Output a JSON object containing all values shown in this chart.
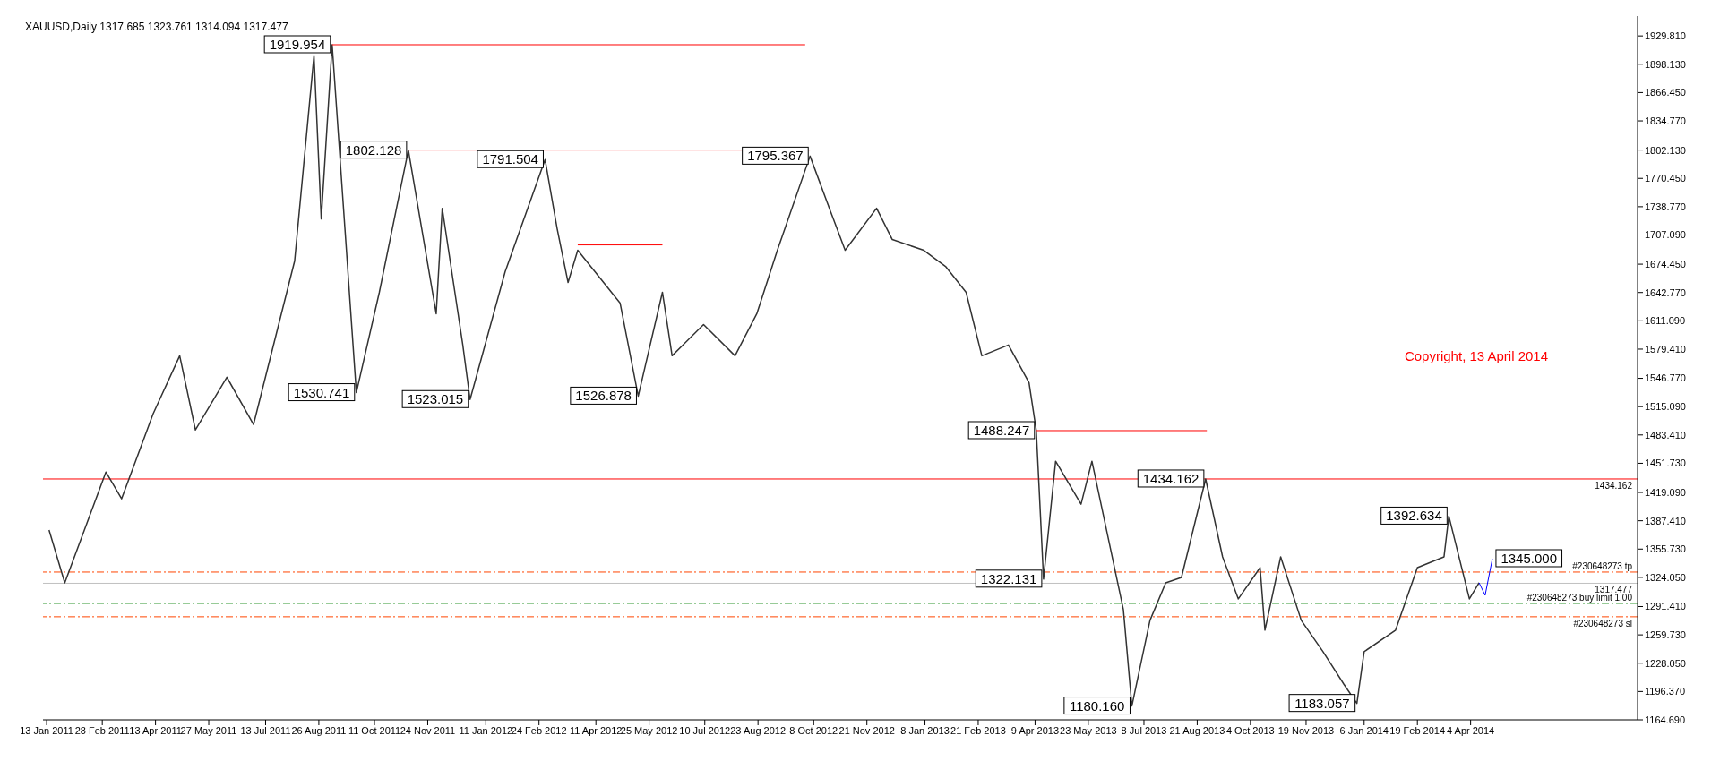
{
  "chart_data": {
    "type": "line",
    "title": "XAUUSD,Daily  1317.685 1323.761 1314.094 1317.477",
    "x": [
      "2011-01-15",
      "2011-01-28",
      "2011-03-03",
      "2011-03-16",
      "2011-04-11",
      "2011-05-03",
      "2011-05-16",
      "2011-06-11",
      "2011-07-03",
      "2011-08-06",
      "2011-08-22",
      "2011-08-28",
      "2011-09-06",
      "2011-09-26",
      "2011-10-15",
      "2011-11-08",
      "2011-12-01",
      "2011-12-06",
      "2011-12-23",
      "2011-12-29",
      "2012-01-27",
      "2012-02-29",
      "2012-03-10",
      "2012-03-19",
      "2012-03-27",
      "2012-05-01",
      "2012-05-16",
      "2012-06-05",
      "2012-06-13",
      "2012-07-09",
      "2012-08-04",
      "2012-08-22",
      "2012-09-08",
      "2012-10-05",
      "2012-10-21",
      "2012-11-03",
      "2012-11-29",
      "2012-12-12",
      "2013-01-07",
      "2013-01-25",
      "2013-02-11",
      "2013-02-24",
      "2013-03-18",
      "2013-04-04",
      "2013-04-10",
      "2013-04-13",
      "2013-04-16",
      "2013-04-26",
      "2013-05-17",
      "2013-05-26",
      "2013-06-21",
      "2013-06-28",
      "2013-07-13",
      "2013-07-26",
      "2013-08-08",
      "2013-08-28",
      "2013-09-11",
      "2013-09-24",
      "2013-10-12",
      "2013-10-16",
      "2013-10-29",
      "2013-11-15",
      "2013-12-03",
      "2013-12-20",
      "2013-12-31",
      "2014-01-06",
      "2014-02-01",
      "2014-02-19",
      "2014-03-13",
      "2014-03-17",
      "2014-04-03",
      "2014-04-11"
    ],
    "series": [
      {
        "color": "#333333",
        "values": [
          1377,
          1318,
          1442,
          1412,
          1507,
          1572,
          1489,
          1548,
          1495,
          1678,
          1908,
          1725,
          1919.954,
          1530.741,
          1643,
          1802.128,
          1619,
          1737,
          1584,
          1523.015,
          1666,
          1791.504,
          1714,
          1654,
          1690,
          1631,
          1526.878,
          1643,
          1572,
          1607,
          1572,
          1619,
          1690,
          1795.367,
          1737,
          1690,
          1737,
          1702,
          1690,
          1672,
          1643,
          1572,
          1584,
          1542,
          1488.247,
          1406,
          1322.131,
          1454,
          1406,
          1454,
          1288,
          1180.16,
          1276,
          1318,
          1324,
          1434.162,
          1347,
          1300,
          1335,
          1265,
          1347,
          1276,
          1241,
          1205,
          1183.057,
          1241,
          1265,
          1335,
          1347,
          1392.634,
          1300,
          1318
        ]
      },
      {
        "type": "line",
        "color": "#ff0000",
        "x": [
          "2011-09-06",
          "2012-10-01"
        ],
        "values": [
          1919.954,
          1919.954
        ]
      },
      {
        "type": "line",
        "color": "#ff0000",
        "x": [
          "2011-11-08",
          "2012-10-05"
        ],
        "values": [
          1802.128,
          1802.128
        ]
      },
      {
        "type": "line",
        "color": "#ff0000",
        "x": [
          "2012-03-27",
          "2012-06-05"
        ],
        "values": [
          1696,
          1696
        ]
      },
      {
        "type": "line",
        "color": "#ff0000",
        "x": [
          "2013-04-10",
          "2013-08-29"
        ],
        "values": [
          1488.247,
          1488.247
        ]
      },
      {
        "type": "line",
        "color": "#0000ff",
        "x": [
          "2014-04-11",
          "2014-04-16",
          "2014-04-22"
        ],
        "values": [
          1318,
          1304,
          1345
        ]
      }
    ],
    "xlim": [
      "2011-01-10",
      "2014-08-20"
    ],
    "xticks": [
      {
        "value": "2011-01-13",
        "label": "13 Jan 2011"
      },
      {
        "value": "2011-02-28",
        "label": "28 Feb 2011"
      },
      {
        "value": "2011-04-13",
        "label": "13 Apr 2011"
      },
      {
        "value": "2011-05-27",
        "label": "27 May 2011"
      },
      {
        "value": "2011-07-13",
        "label": "13 Jul 2011"
      },
      {
        "value": "2011-08-26",
        "label": "26 Aug 2011"
      },
      {
        "value": "2011-10-11",
        "label": "11 Oct 2011"
      },
      {
        "value": "2011-11-24",
        "label": "24 Nov 2011"
      },
      {
        "value": "2012-01-11",
        "label": "11 Jan 2012"
      },
      {
        "value": "2012-02-24",
        "label": "24 Feb 2012"
      },
      {
        "value": "2012-04-11",
        "label": "11 Apr 2012"
      },
      {
        "value": "2012-05-25",
        "label": "25 May 2012"
      },
      {
        "value": "2012-07-10",
        "label": "10 Jul 2012"
      },
      {
        "value": "2012-08-23",
        "label": "23 Aug 2012"
      },
      {
        "value": "2012-10-08",
        "label": "8 Oct 2012"
      },
      {
        "value": "2012-11-21",
        "label": "21 Nov 2012"
      },
      {
        "value": "2013-01-08",
        "label": "8 Jan 2013"
      },
      {
        "value": "2013-02-21",
        "label": "21 Feb 2013"
      },
      {
        "value": "2013-04-09",
        "label": "9 Apr 2013"
      },
      {
        "value": "2013-05-23",
        "label": "23 May 2013"
      },
      {
        "value": "2013-07-08",
        "label": "8 Jul 2013"
      },
      {
        "value": "2013-08-21",
        "label": "21 Aug 2013"
      },
      {
        "value": "2013-10-04",
        "label": "4 Oct 2013"
      },
      {
        "value": "2013-11-19",
        "label": "19 Nov 2013"
      },
      {
        "value": "2014-01-06",
        "label": "6 Jan 2014"
      },
      {
        "value": "2014-02-19",
        "label": "19 Feb 2014"
      },
      {
        "value": "2014-04-04",
        "label": "4 Apr 2014"
      }
    ],
    "ylim": [
      1164.69,
      1952
    ],
    "yticks": [
      {
        "value": 1929.81,
        "label": "1929.810"
      },
      {
        "value": 1898.13,
        "label": "1898.130"
      },
      {
        "value": 1866.45,
        "label": "1866.450"
      },
      {
        "value": 1834.77,
        "label": "1834.770"
      },
      {
        "value": 1802.13,
        "label": "1802.130"
      },
      {
        "value": 1770.45,
        "label": "1770.450"
      },
      {
        "value": 1738.77,
        "label": "1738.770"
      },
      {
        "value": 1707.09,
        "label": "1707.090"
      },
      {
        "value": 1674.45,
        "label": "1674.450"
      },
      {
        "value": 1642.77,
        "label": "1642.770"
      },
      {
        "value": 1611.09,
        "label": "1611.090"
      },
      {
        "value": 1579.41,
        "label": "1579.410"
      },
      {
        "value": 1546.77,
        "label": "1546.770"
      },
      {
        "value": 1515.09,
        "label": "1515.090"
      },
      {
        "value": 1483.41,
        "label": "1483.410"
      },
      {
        "value": 1451.73,
        "label": "1451.730"
      },
      {
        "value": 1419.09,
        "label": "1419.090"
      },
      {
        "value": 1387.41,
        "label": "1387.410"
      },
      {
        "value": 1355.73,
        "label": "1355.730"
      },
      {
        "value": 1324.05,
        "label": "1324.050"
      },
      {
        "value": 1291.41,
        "label": "1291.410"
      },
      {
        "value": 1259.73,
        "label": "1259.730"
      },
      {
        "value": 1228.05,
        "label": "1228.050"
      },
      {
        "value": 1196.37,
        "label": "1196.370"
      },
      {
        "value": 1164.69,
        "label": "1164.690"
      }
    ],
    "ref_lines": [
      {
        "axis": "y",
        "value": 1434.162,
        "label": "1434.162",
        "color": "#ff0000",
        "line_style": "solid"
      },
      {
        "axis": "y",
        "value": 1330,
        "label": "#230648273 tp",
        "color": "#ff4500",
        "line_style": "dashed"
      },
      {
        "axis": "y",
        "value": 1317.477,
        "label": "1317.477",
        "color": "#c0c0c0",
        "line_style": "solid"
      },
      {
        "axis": "y",
        "value": 1295,
        "label": "#230648273 buy limit 1.00",
        "color": "#008000",
        "line_style": "dashed"
      },
      {
        "axis": "y",
        "value": 1280,
        "label": "#230648273 sl",
        "color": "#ff4500",
        "line_style": "dashed"
      }
    ],
    "annotations": [
      {
        "text": "1919.954",
        "x": "2011-09-06",
        "y": 1919.954
      },
      {
        "text": "1802.128",
        "x": "2011-11-08",
        "y": 1802.128
      },
      {
        "text": "1530.741",
        "x": "2011-09-26",
        "y": 1530.741
      },
      {
        "text": "1523.015",
        "x": "2011-12-29",
        "y": 1523.015
      },
      {
        "text": "1791.504",
        "x": "2012-02-29",
        "y": 1791.504
      },
      {
        "text": "1526.878",
        "x": "2012-05-16",
        "y": 1526.878
      },
      {
        "text": "1795.367",
        "x": "2012-10-05",
        "y": 1795.367
      },
      {
        "text": "1488.247",
        "x": "2013-04-10",
        "y": 1488.247
      },
      {
        "text": "1322.131",
        "x": "2013-04-16",
        "y": 1322.131
      },
      {
        "text": "1180.160",
        "x": "2013-06-28",
        "y": 1180.16
      },
      {
        "text": "1434.162",
        "x": "2013-08-28",
        "y": 1434.162
      },
      {
        "text": "1183.057",
        "x": "2013-12-31",
        "y": 1183.057
      },
      {
        "text": "1392.634",
        "x": "2014-03-17",
        "y": 1392.634
      },
      {
        "text": "1345.000",
        "x": "2014-04-22",
        "y": 1345
      },
      "Copyright, 13 April 2014"
    ],
    "grid": false,
    "marker": "none",
    "line_style": "solid"
  }
}
